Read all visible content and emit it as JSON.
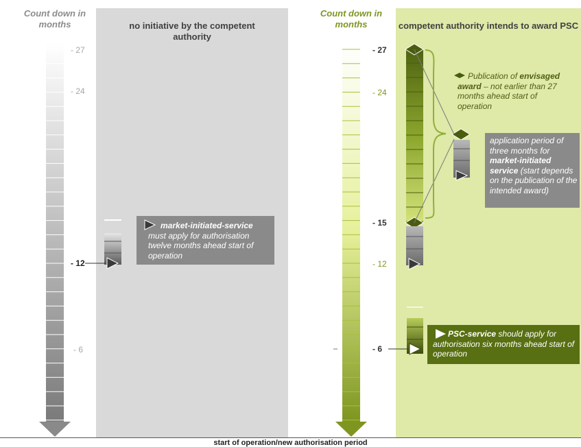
{
  "colors": {
    "grey_panel": "#d9d9d9",
    "green_panel": "#dfe9a8",
    "note_grey": "#8a8a8a",
    "note_green": "#586f12",
    "arrow_grey": "#8a8a8a",
    "arrow_green": "#7e9620",
    "brace_green": "#8fb03a",
    "text_green": "#7d9622"
  },
  "left": {
    "countdown_label": "Count down in months",
    "panel_title": "no initiative by the competent authority",
    "ticks": [
      {
        "label": "- 27",
        "month": 27
      },
      {
        "label": "- 24",
        "month": 24
      },
      {
        "label": "- 12",
        "month": 12
      },
      {
        "label": "- 6",
        "month": 6
      }
    ],
    "note": {
      "bold": "market-initiated-service",
      "text": "must apply for authorisation twelve months ahead start of operation"
    }
  },
  "right": {
    "countdown_label": "Count down in months",
    "panel_title": "competent authority intends to award PSC",
    "ticks": [
      {
        "label": "- 27",
        "month": 27
      },
      {
        "label": "- 24",
        "month": 24
      },
      {
        "label": "- 15",
        "month": 15
      },
      {
        "label": "- 12",
        "month": 12
      },
      {
        "label": "- 6",
        "month": 6
      }
    ],
    "publication_note": {
      "pre": "Publication of",
      "bold": "envisaged award",
      "post": "– not earlier than 27 months ahead start of operation"
    },
    "application_note": {
      "pre": "application period of three months for",
      "bold": "market-initiated service",
      "post": "(start depends on the publication of the intended award)"
    },
    "psc_note": {
      "bold": "PSC-service",
      "text": "should apply for authorisation six months ahead start of operation"
    }
  },
  "footer": "start of operation/new authorisation period"
}
